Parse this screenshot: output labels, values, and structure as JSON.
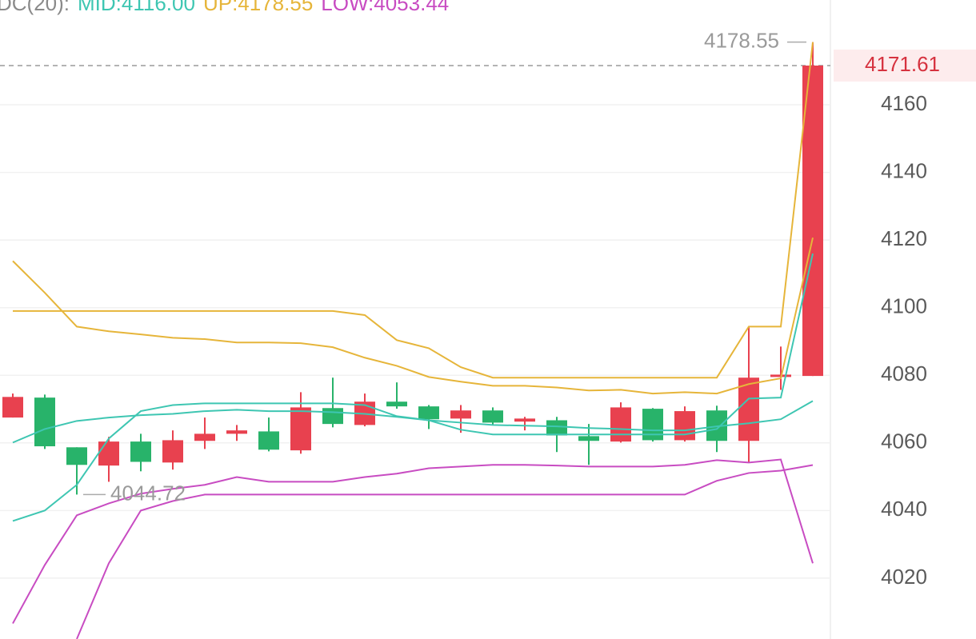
{
  "chart_data": {
    "type": "candlestick",
    "legend_title": "DC(20):",
    "open": [
      4067.5,
      4073.4,
      4058.7,
      4053.3,
      4060.4,
      4054.2,
      4060.6,
      4062.7,
      4063.4,
      4057.8,
      4070.3,
      4065.3,
      4072.2,
      4070.8,
      4067.2,
      4069.6,
      4066.3,
      4066.7,
      4062.0,
      4060.4,
      4070.1,
      4060.8,
      4069.6,
      4060.6,
      4079.5,
      4079.8
    ],
    "high": [
      4074.6,
      4074.3,
      4058.7,
      4061.8,
      4062.7,
      4063.7,
      4067.5,
      4065.3,
      4067.5,
      4075.0,
      4079.3,
      4074.6,
      4077.9,
      4071.2,
      4071.2,
      4070.5,
      4067.7,
      4067.7,
      4065.6,
      4072.0,
      4070.3,
      4070.8,
      4071.0,
      4094.2,
      4088.5,
      4178.55
    ],
    "low": [
      4067.5,
      4058.2,
      4044.72,
      4048.5,
      4051.6,
      4052.1,
      4058.2,
      4060.6,
      4057.5,
      4056.8,
      4064.6,
      4064.9,
      4070.1,
      4064.1,
      4063.0,
      4065.3,
      4063.7,
      4057.3,
      4053.5,
      4060.1,
      4060.4,
      4060.4,
      4057.3,
      4054.4,
      4075.7,
      4079.8
    ],
    "close": [
      4073.6,
      4059.0,
      4053.5,
      4060.4,
      4054.4,
      4060.8,
      4062.7,
      4063.7,
      4058.0,
      4070.5,
      4065.6,
      4072.2,
      4070.8,
      4067.0,
      4069.6,
      4066.0,
      4067.2,
      4062.2,
      4060.6,
      4070.5,
      4060.8,
      4069.4,
      4060.6,
      4079.3,
      4080.2,
      4171.61
    ],
    "up_color": "#e8414f",
    "down_color": "#28b36a",
    "series": [
      {
        "name": "MID:4116.00",
        "color": "#3ec6b2",
        "values": [
          4036.9,
          4040.0,
          4047.6,
          4061.3,
          4069.4,
          4071.2,
          4071.7,
          4071.7,
          4071.7,
          4071.7,
          4071.7,
          4071.2,
          4067.9,
          4066.7,
          4063.9,
          4062.5,
          4062.5,
          4062.5,
          4062.5,
          4062.5,
          4062.5,
          4062.5,
          4064.1,
          4073.1,
          4073.4,
          4116.0
        ]
      },
      {
        "name": "UP:4178.55",
        "color": "#e6b53a",
        "values": [
          4099.0,
          4099.0,
          4099.0,
          4099.0,
          4099.0,
          4099.0,
          4099.0,
          4099.0,
          4099.0,
          4099.0,
          4099.0,
          4097.8,
          4090.4,
          4088.0,
          4082.4,
          4079.3,
          4079.3,
          4079.3,
          4079.3,
          4079.3,
          4079.3,
          4079.3,
          4079.3,
          4094.4,
          4094.4,
          4178.55
        ]
      },
      {
        "name": "LOW:4053.44",
        "color": "#c84cc2",
        "values": [
          null,
          null,
          4002,
          4024.4,
          4040.0,
          4042.8,
          4044.72,
          4044.72,
          4044.72,
          4044.72,
          4044.72,
          4044.72,
          4044.72,
          4044.72,
          4044.72,
          4044.72,
          4044.72,
          4044.72,
          4044.72,
          4044.72,
          4044.72,
          4044.72,
          4048.8,
          4051.1,
          4051.8,
          4053.44
        ]
      },
      {
        "color": "#3ec6b2",
        "values": [
          4060.1,
          4064.1,
          4066.5,
          4067.5,
          4068.2,
          4068.6,
          4069.4,
          4069.8,
          4069.4,
          4069.4,
          4069.1,
          4068.6,
          4067.7,
          4066.7,
          4066.0,
          4065.3,
          4065.1,
          4064.9,
          4064.4,
          4064.1,
          4063.7,
          4063.7,
          4064.9,
          4065.8,
          4067.0,
          4072.4
        ]
      },
      {
        "color": "#e6b53a",
        "values": [
          4113.8,
          4104.4,
          4094.4,
          4093.0,
          4092.1,
          4091.1,
          4090.7,
          4089.7,
          4089.7,
          4089.5,
          4088.3,
          4085.2,
          4082.8,
          4079.5,
          4078.1,
          4076.9,
          4076.9,
          4076.4,
          4075.5,
          4075.7,
          4074.6,
          4075.0,
          4074.6,
          4077.4,
          4079.1,
          4120.7
        ]
      },
      {
        "color": "#c84cc2",
        "values": [
          4006.6,
          4023.9,
          4038.6,
          4042.1,
          4045.0,
          4046.4,
          4047.6,
          4049.9,
          4048.5,
          4048.5,
          4048.5,
          4049.9,
          4050.9,
          4052.5,
          4053.0,
          4053.5,
          4053.5,
          4053.3,
          4053.0,
          4053.0,
          4053.0,
          4053.5,
          4054.9,
          4054.2,
          4055.1,
          4024.4
        ]
      }
    ],
    "ylim": [
      4002,
      4191
    ],
    "yticks": [
      4020,
      4040,
      4060,
      4080,
      4100,
      4120,
      4140,
      4160
    ],
    "grid": true,
    "annotations": {
      "high": 4178.55,
      "low": 4044.72,
      "last_price": 4171.61
    }
  }
}
